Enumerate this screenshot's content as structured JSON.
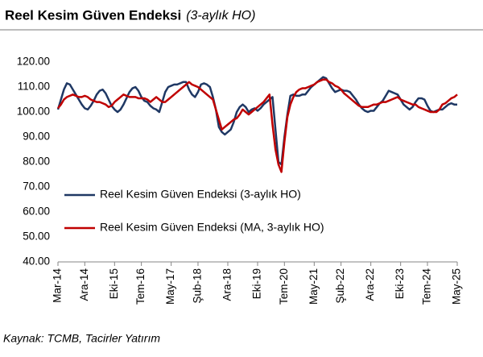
{
  "chart_data": {
    "type": "line",
    "title": "Reel Kesim Güven Endeksi",
    "subtitle": "(3-aylık HO)",
    "source": "Kaynak: TCMB, Tacirler Yatırım",
    "categories": [
      "Mar-14",
      null,
      null,
      null,
      null,
      null,
      null,
      null,
      null,
      "Ara-14",
      null,
      null,
      null,
      null,
      null,
      null,
      null,
      null,
      null,
      "Eki-15",
      null,
      null,
      null,
      null,
      null,
      null,
      null,
      null,
      "Tem-16",
      null,
      null,
      null,
      null,
      null,
      null,
      null,
      null,
      null,
      "May-17",
      null,
      null,
      null,
      null,
      null,
      null,
      null,
      null,
      "Şub-18",
      null,
      null,
      null,
      null,
      null,
      null,
      null,
      null,
      null,
      "Ara-18",
      null,
      null,
      null,
      null,
      null,
      null,
      null,
      null,
      null,
      "Eki-19",
      null,
      null,
      null,
      null,
      null,
      null,
      null,
      null,
      "Tem-20",
      null,
      null,
      null,
      null,
      null,
      null,
      null,
      null,
      null,
      "May-21",
      null,
      null,
      null,
      null,
      null,
      null,
      null,
      null,
      "Şub-22",
      null,
      null,
      null,
      null,
      null,
      null,
      null,
      null,
      null,
      "Ara-22",
      null,
      null,
      null,
      null,
      null,
      null,
      null,
      null,
      null,
      "Eki-23",
      null,
      null,
      null,
      null,
      null,
      null,
      null,
      null,
      "Tem-24",
      null,
      null,
      null,
      null,
      null,
      null,
      null,
      null,
      null,
      "May-25"
    ],
    "series": [
      {
        "name": "Reel Kesim Güven Endeksi (3-aylık HO)",
        "color": "#1f3864",
        "values": [
          101,
          105,
          109,
          111.5,
          111,
          109,
          107,
          105,
          103,
          101.5,
          101,
          102.5,
          104.5,
          107,
          108.5,
          109,
          107.5,
          105,
          102.5,
          101,
          100,
          101,
          103,
          105.5,
          108,
          109.5,
          110,
          108.5,
          106,
          104.5,
          104,
          102.5,
          101.5,
          101,
          100,
          104,
          108,
          110,
          110.5,
          111,
          111,
          111.5,
          112,
          112,
          109,
          107,
          106,
          108,
          111,
          111.5,
          111,
          110,
          106,
          101,
          94,
          92,
          91,
          92,
          93,
          96,
          100,
          102,
          103,
          102,
          100,
          101,
          101.5,
          100.5,
          101.5,
          103,
          104,
          105,
          106,
          93,
          80,
          79,
          90,
          99,
          106.5,
          107,
          106.5,
          106.5,
          107,
          107,
          108.5,
          110,
          111,
          112,
          113,
          114,
          113.5,
          111.5,
          109.5,
          108,
          108.5,
          109,
          108.5,
          108.5,
          108,
          106.5,
          105,
          103,
          101.5,
          100.5,
          100,
          100.5,
          100.5,
          102,
          103.5,
          104.5,
          106.5,
          108.5,
          108,
          107.5,
          107,
          105,
          103,
          102,
          101,
          102,
          104,
          105.5,
          105.5,
          105,
          102.5,
          100.5,
          100,
          100.5,
          101,
          101,
          102,
          103,
          103.5,
          103,
          103
        ]
      },
      {
        "name": "Reel Kesim Güven Endeksi (MA, 3-aylık HO)",
        "color": "#c00000",
        "values": [
          101.5,
          103,
          105,
          106,
          106.5,
          107,
          106.5,
          106,
          106,
          106.5,
          106,
          105,
          104.5,
          104,
          104,
          103.5,
          103,
          102,
          102.5,
          104,
          105,
          106,
          107,
          106.5,
          106,
          106,
          106,
          105.5,
          105.5,
          105.5,
          105,
          104,
          105,
          106,
          105,
          104,
          104,
          105,
          106,
          107,
          108,
          109,
          110,
          111,
          112,
          111,
          110.5,
          110,
          109,
          108,
          107,
          106,
          105,
          101,
          97,
          93,
          94,
          95,
          96,
          97,
          97.5,
          99,
          101,
          100,
          99,
          100,
          101,
          102,
          103,
          104,
          105.5,
          107,
          95,
          85,
          79,
          76,
          88,
          98,
          103,
          106,
          108,
          109,
          109.5,
          109.5,
          110,
          110.5,
          111,
          112,
          112.5,
          113,
          113,
          112,
          111.5,
          110.5,
          110,
          109,
          107.5,
          106.5,
          105.5,
          104.5,
          103.5,
          102.5,
          102,
          102,
          102,
          102.5,
          103,
          103,
          103.5,
          104,
          104,
          104.5,
          105,
          105.5,
          106,
          105,
          104.5,
          104,
          103.5,
          103,
          103,
          102,
          101.5,
          101,
          100.5,
          100,
          100,
          100,
          101,
          103,
          103.5,
          104.5,
          105.5,
          106,
          107
        ]
      }
    ],
    "ylim": [
      40,
      120
    ],
    "yticks": [
      {
        "value": 40,
        "label": "40.00"
      },
      {
        "value": 50,
        "label": "50.00"
      },
      {
        "value": 60,
        "label": "60.00"
      },
      {
        "value": 70,
        "label": "70.00"
      },
      {
        "value": 80,
        "label": "80.00"
      },
      {
        "value": 90,
        "label": "90.00"
      },
      {
        "value": 100,
        "label": "100.00"
      },
      {
        "value": 110,
        "label": "110.00"
      },
      {
        "value": 120,
        "label": "120.00"
      }
    ],
    "grid": false,
    "legend": "inside-left"
  }
}
